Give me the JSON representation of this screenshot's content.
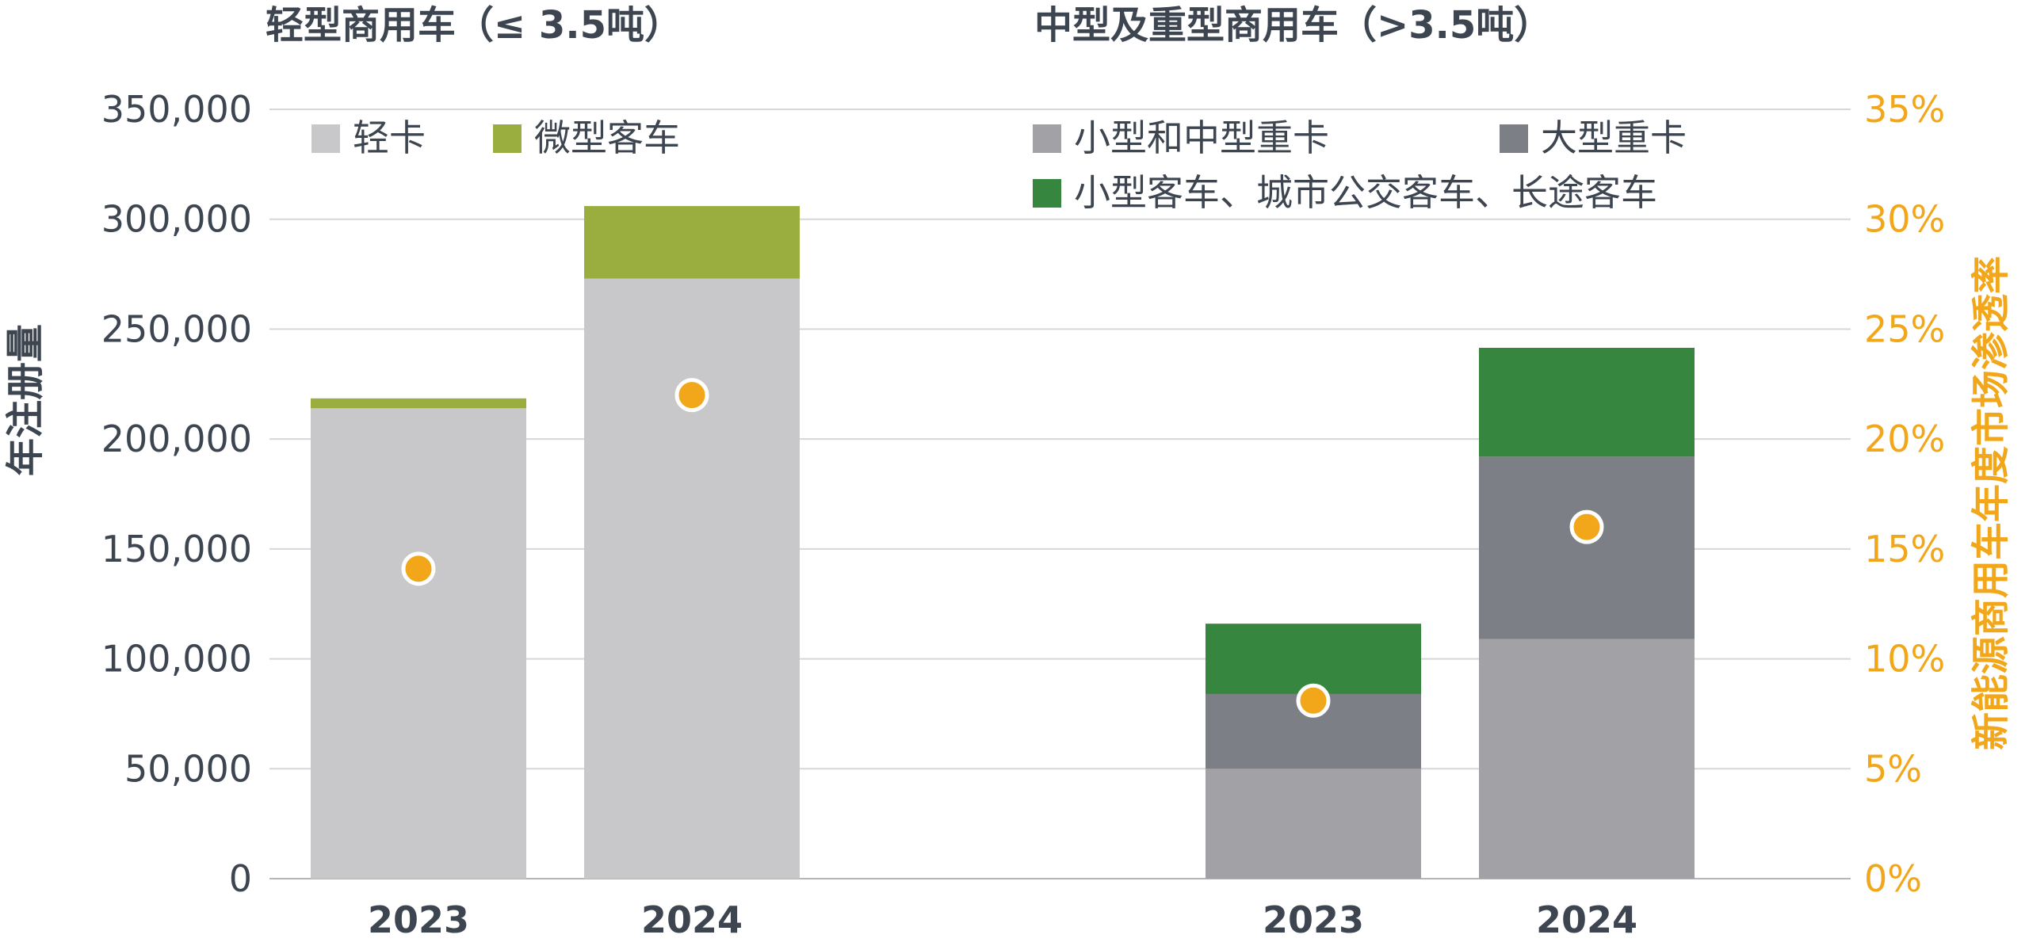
{
  "chart_data": [
    {
      "type": "bar",
      "stacked": true,
      "title": "轻型商用车（≤ 3.5吨）",
      "categories": [
        "2023",
        "2024"
      ],
      "series": [
        {
          "name": "轻卡",
          "color": "#c8c8ca",
          "values": [
            214000,
            273000
          ]
        },
        {
          "name": "微型客车",
          "color": "#9aae3f",
          "values": [
            4500,
            33000
          ]
        }
      ],
      "penetration": {
        "color": "#f2a71b",
        "values": [
          14.1,
          22.0
        ]
      }
    },
    {
      "type": "bar",
      "stacked": true,
      "title": "中型及重型商用车（>3.5吨）",
      "categories": [
        "2023",
        "2024"
      ],
      "series": [
        {
          "name": "小型和中型重卡",
          "color": "#a2a2a6",
          "values": [
            50000,
            109000
          ]
        },
        {
          "name": "大型重卡",
          "color": "#7c7f86",
          "values": [
            34000,
            83000
          ]
        },
        {
          "name": "小型客车、城市公交客车、长途客车",
          "color": "#368640",
          "values": [
            32000,
            49500
          ]
        }
      ],
      "penetration": {
        "color": "#f2a71b",
        "values": [
          8.1,
          16.0
        ]
      }
    }
  ],
  "axes": {
    "ylabel": "年注册量",
    "y2label": "新能源商用车年度市场渗透率",
    "yticks": [
      "0",
      "50,000",
      "100,000",
      "150,000",
      "200,000",
      "250,000",
      "300,000",
      "350,000"
    ],
    "y2ticks": [
      "0%",
      "5%",
      "10%",
      "15%",
      "20%",
      "25%",
      "30%",
      "35%"
    ],
    "ylim": [
      0,
      350000
    ],
    "y2lim": [
      0,
      35
    ],
    "grid": true
  }
}
